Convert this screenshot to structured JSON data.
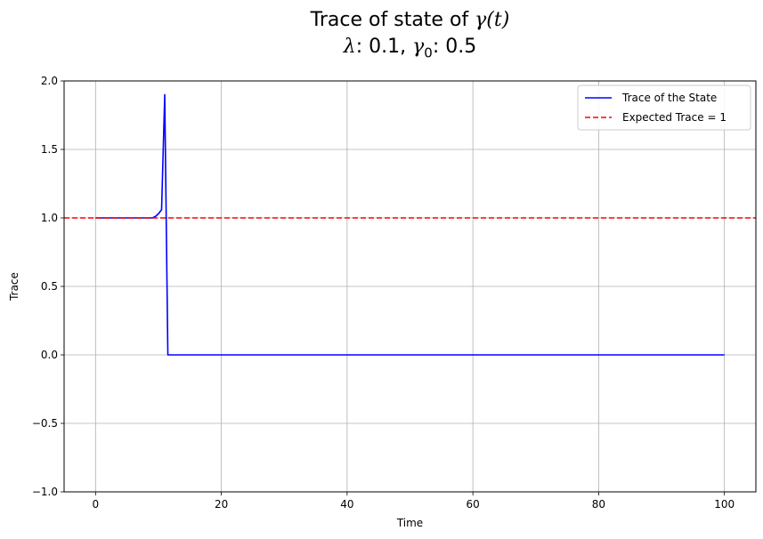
{
  "chart_data": {
    "type": "line",
    "title_parts": {
      "line1_text": "Trace of state of ",
      "line1_math": "γ(t)",
      "line2_lambda_label": "λ",
      "line2_lambda_value": ": 0.1, ",
      "line2_gamma_label": "γ",
      "line2_gamma_sub": "0",
      "line2_gamma_value": ": 0.5"
    },
    "xlabel": "Time",
    "ylabel": "Trace",
    "xlim": [
      -5,
      105
    ],
    "ylim": [
      -1.0,
      2.0
    ],
    "xticks": [
      0,
      20,
      40,
      60,
      80,
      100
    ],
    "xtick_labels": [
      "0",
      "20",
      "40",
      "60",
      "80",
      "100"
    ],
    "yticks": [
      -1.0,
      -0.5,
      0.0,
      0.5,
      1.0,
      1.5,
      2.0
    ],
    "ytick_labels": [
      "−1.0",
      "−0.5",
      "0.0",
      "0.5",
      "1.0",
      "1.5",
      "2.0"
    ],
    "grid": true,
    "legend_position": "top-right",
    "series": [
      {
        "name": "Trace of the State",
        "color": "#0000ff",
        "style": "solid",
        "x": [
          0,
          1,
          2,
          3,
          4,
          5,
          6,
          7,
          8,
          9,
          9.5,
          10,
          10.5,
          11,
          11.5,
          12,
          20,
          40,
          60,
          80,
          100
        ],
        "y": [
          1.0,
          1.0,
          1.0,
          1.0,
          1.0,
          1.0,
          1.0,
          1.0,
          1.0,
          1.0,
          1.01,
          1.03,
          1.06,
          1.9,
          0.0,
          0.0,
          0.0,
          0.0,
          0.0,
          0.0,
          0.0
        ]
      },
      {
        "name": "Expected Trace = 1",
        "color": "#ff0000",
        "style": "dashed",
        "y_constant": 1.0
      }
    ]
  }
}
